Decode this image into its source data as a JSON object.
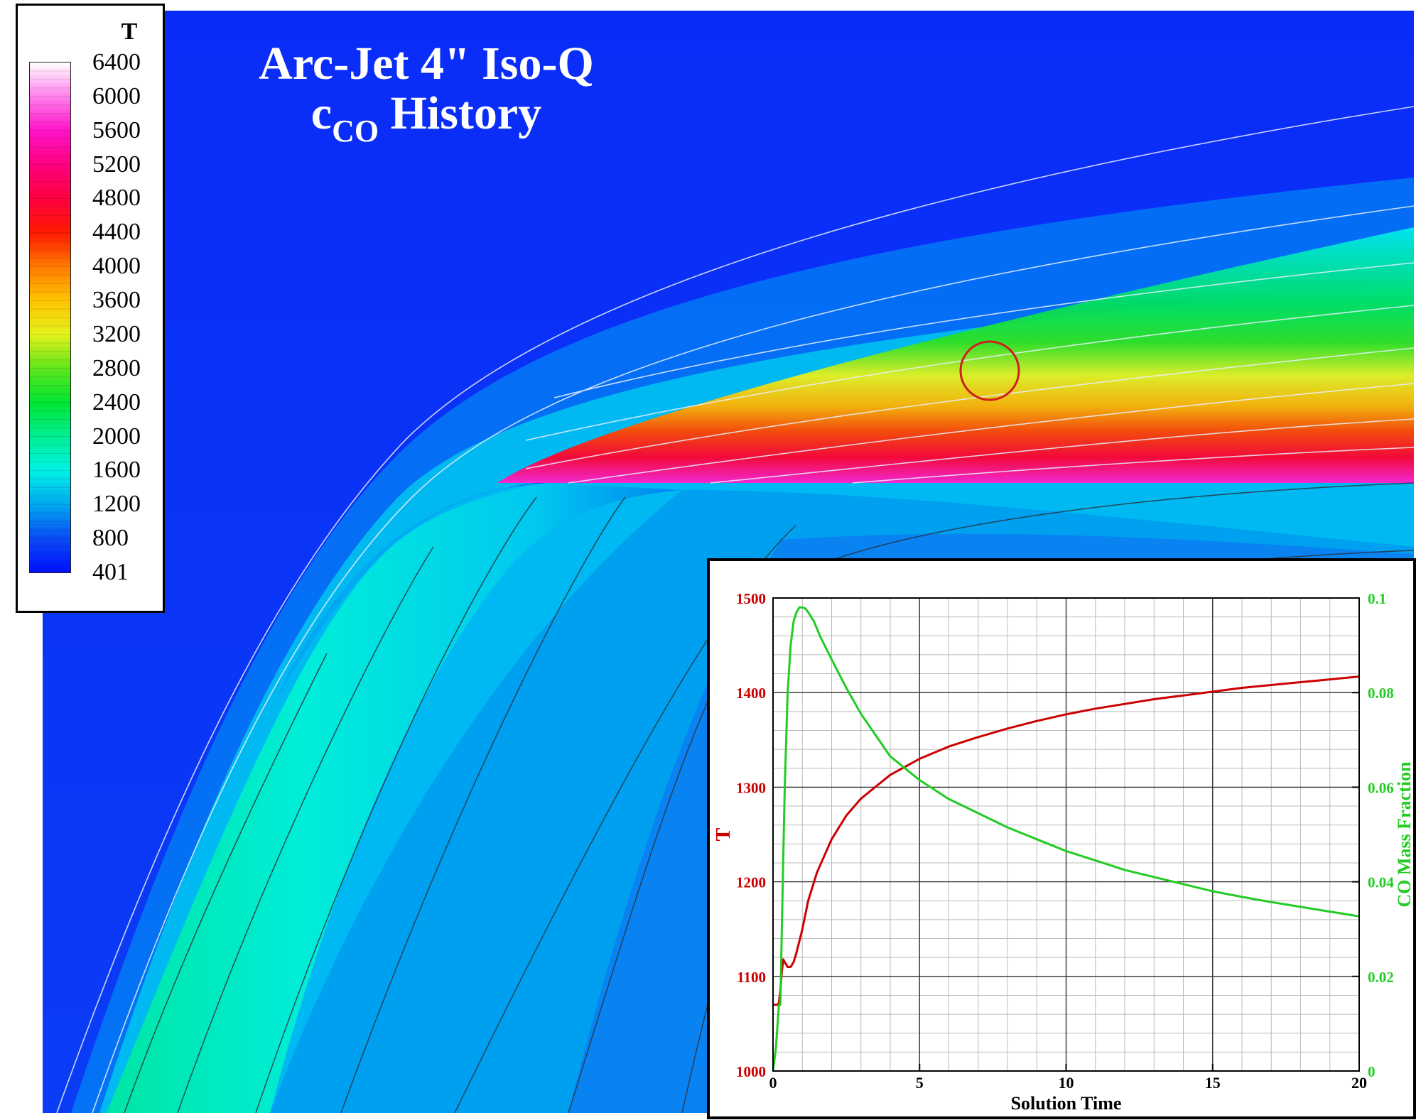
{
  "title": {
    "line1": "Arc-Jet 4\" Iso-Q",
    "line2_main": "c",
    "line2_sub": "CO",
    "line2_rest": " History"
  },
  "colors": {
    "background_field": "#0a1cf5",
    "t_series": "#cc0000",
    "co_series": "#22cc22",
    "probe_circle": "#cc1f1f",
    "inset_border": "#000000"
  },
  "colorbar": {
    "variable": "T",
    "labels": [
      "6400",
      "6000",
      "5600",
      "5200",
      "4800",
      "4400",
      "4000",
      "3600",
      "3200",
      "2800",
      "2400",
      "2000",
      "1600",
      "1200",
      "800",
      "401"
    ],
    "min": 401,
    "max": 6400,
    "stops": [
      {
        "value": 401,
        "color": "#0010ff"
      },
      {
        "value": 800,
        "color": "#0a4cf5"
      },
      {
        "value": 1200,
        "color": "#00a8f0"
      },
      {
        "value": 1600,
        "color": "#00f2e6"
      },
      {
        "value": 2000,
        "color": "#00ee92"
      },
      {
        "value": 2400,
        "color": "#00e633"
      },
      {
        "value": 2800,
        "color": "#5ee61a"
      },
      {
        "value": 3200,
        "color": "#e4f21a"
      },
      {
        "value": 3600,
        "color": "#ffc400"
      },
      {
        "value": 4000,
        "color": "#ff7a00"
      },
      {
        "value": 4400,
        "color": "#ff1a00"
      },
      {
        "value": 4800,
        "color": "#ff0040"
      },
      {
        "value": 5200,
        "color": "#ff0080"
      },
      {
        "value": 5600,
        "color": "#ff14c8"
      },
      {
        "value": 6000,
        "color": "#ff80ec"
      },
      {
        "value": 6400,
        "color": "#ffffff"
      }
    ]
  },
  "chart_data": {
    "type": "line",
    "xlabel": "Solution Time",
    "y1label": "T",
    "y2label": "CO Mass Fraction",
    "xlim": [
      0,
      20
    ],
    "y1lim": [
      1000,
      1500
    ],
    "y2lim": [
      0,
      0.1
    ],
    "x_ticks": [
      "0",
      "5",
      "10",
      "15",
      "20"
    ],
    "x_tick_values": [
      0,
      5,
      10,
      15,
      20
    ],
    "y1_ticks": [
      "1000",
      "1100",
      "1200",
      "1300",
      "1400",
      "1500"
    ],
    "y1_tick_values": [
      1000,
      1100,
      1200,
      1300,
      1400,
      1500
    ],
    "y2_ticks": [
      "0",
      "0.02",
      "0.04",
      "0.06",
      "0.08",
      "0.1"
    ],
    "y2_tick_values": [
      0,
      0.02,
      0.04,
      0.06,
      0.08,
      0.1
    ],
    "grid": true,
    "series": [
      {
        "axis": "y1",
        "x": [
          0,
          0.15,
          0.2,
          0.25,
          0.3,
          0.35,
          0.4,
          0.5,
          0.6,
          0.7,
          0.8,
          1.0,
          1.2,
          1.5,
          2.0,
          2.5,
          3.0,
          4.0,
          5.0,
          6.0,
          7.0,
          8.0,
          9.0,
          10.0,
          11.0,
          12.0,
          13.0,
          14.0,
          15.0,
          16.0,
          17.0,
          18.0,
          19.0,
          20.0
        ],
        "y": [
          1070,
          1070,
          1072,
          1085,
          1105,
          1118,
          1115,
          1110,
          1110,
          1115,
          1125,
          1150,
          1180,
          1210,
          1245,
          1270,
          1288,
          1313,
          1330,
          1343,
          1353,
          1362,
          1370,
          1377,
          1383,
          1388,
          1393,
          1397,
          1401,
          1405,
          1408,
          1411,
          1414,
          1417
        ]
      },
      {
        "axis": "y2",
        "x": [
          0,
          0.1,
          0.2,
          0.25,
          0.3,
          0.35,
          0.4,
          0.5,
          0.6,
          0.7,
          0.8,
          0.9,
          1.0,
          1.1,
          1.2,
          1.4,
          1.6,
          2.0,
          2.5,
          3.0,
          3.5,
          4.0,
          5.0,
          6.0,
          7.0,
          8.0,
          9.0,
          10.0,
          11.0,
          12.0,
          13.0,
          14.0,
          15.0,
          16.0,
          17.0,
          18.0,
          19.0,
          20.0
        ],
        "y": [
          0,
          0.005,
          0.014,
          0.014,
          0.03,
          0.045,
          0.06,
          0.08,
          0.09,
          0.095,
          0.097,
          0.098,
          0.098,
          0.0978,
          0.097,
          0.095,
          0.092,
          0.087,
          0.081,
          0.0755,
          0.071,
          0.0665,
          0.0615,
          0.0575,
          0.0545,
          0.0515,
          0.049,
          0.0465,
          0.0445,
          0.0425,
          0.041,
          0.0395,
          0.038,
          0.0368,
          0.0357,
          0.0347,
          0.0337,
          0.0327
        ]
      }
    ]
  }
}
